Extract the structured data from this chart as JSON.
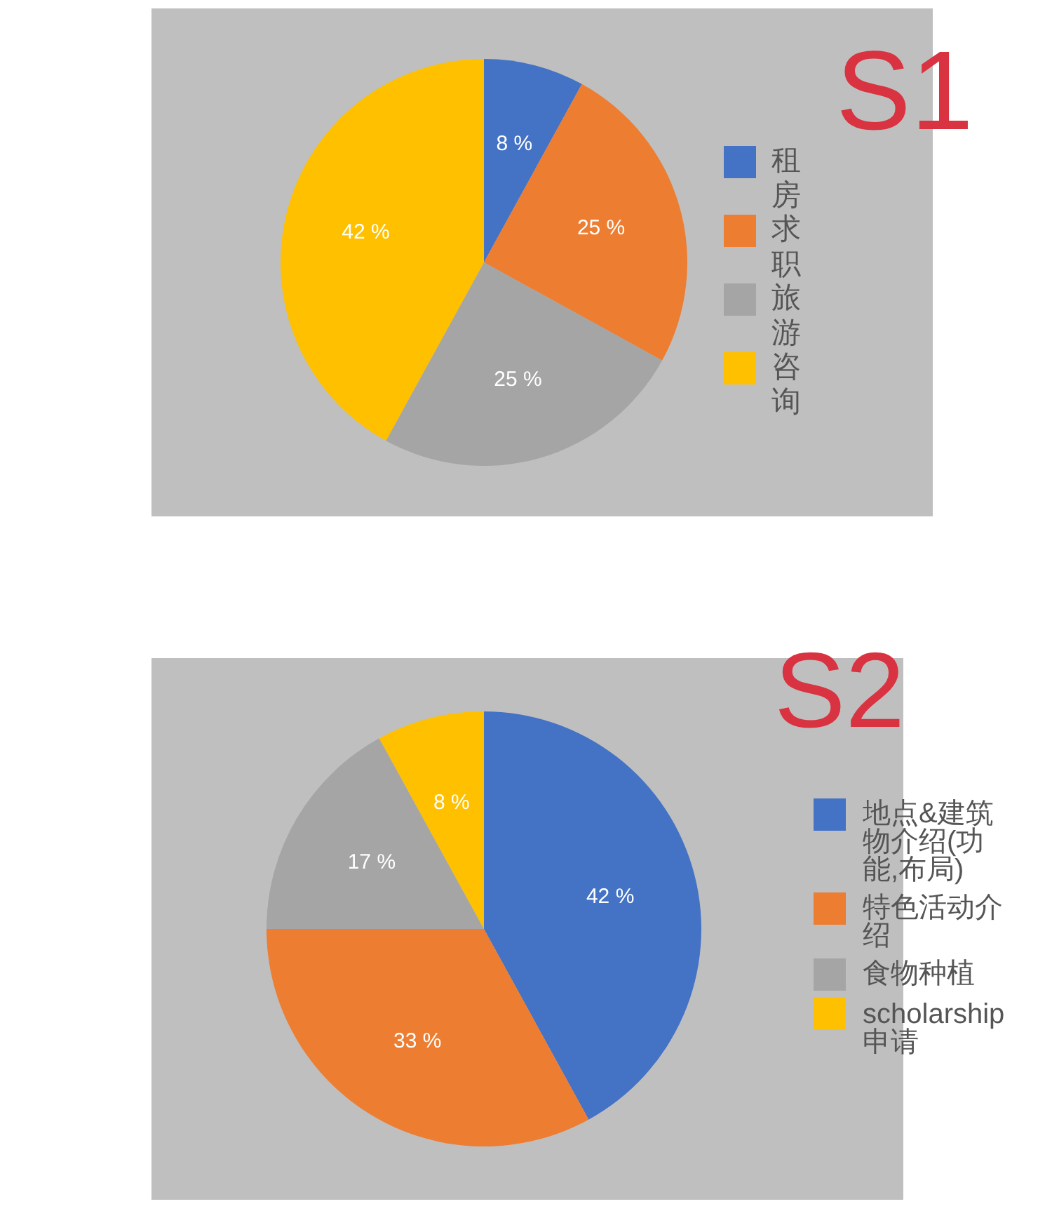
{
  "chart_data": [
    {
      "type": "pie",
      "title": "S1",
      "categories": [
        "租房",
        "求职",
        "旅游",
        "咨询"
      ],
      "values": [
        8,
        25,
        25,
        42
      ],
      "colors": [
        "#4472c4",
        "#ed7d31",
        "#a5a5a5",
        "#ffc000"
      ],
      "value_labels": [
        "8 %",
        "25 %",
        "25 %",
        "42 %"
      ],
      "legend": "right"
    },
    {
      "type": "pie",
      "title": "S2",
      "categories": [
        "地点&建筑物介绍(功能,布局)",
        "特色活动介绍",
        "食物种植",
        "scholarship申请"
      ],
      "values": [
        42,
        33,
        17,
        8
      ],
      "colors": [
        "#4472c4",
        "#ed7d31",
        "#a5a5a5",
        "#ffc000"
      ],
      "value_labels": [
        "42 %",
        "33 %",
        "17 %",
        "8 %"
      ],
      "legend": "right"
    }
  ]
}
